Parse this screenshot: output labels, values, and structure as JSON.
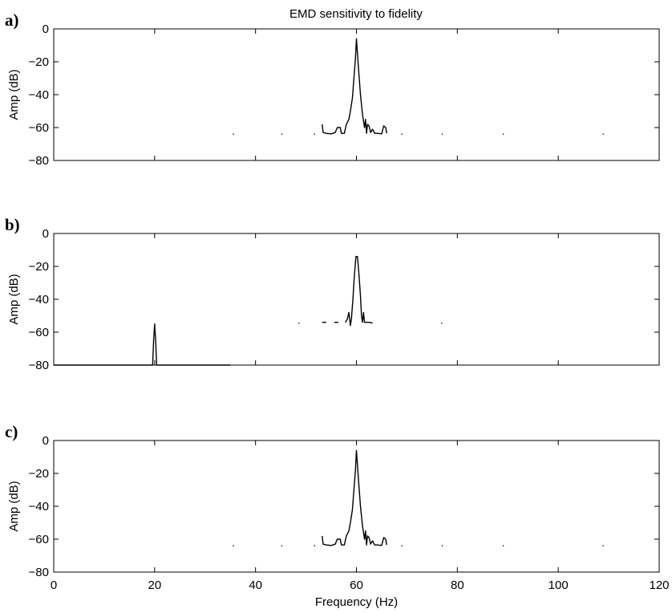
{
  "figure": {
    "title": "EMD sensitivity to fidelity"
  },
  "chart_data": [
    {
      "type": "line",
      "panel_label": "a)",
      "title": "EMD sensitivity to fidelity",
      "xlabel": "",
      "ylabel": "Amp (dB)",
      "xlim": [
        0,
        120
      ],
      "ylim": [
        -80,
        0
      ],
      "xticks": [
        0,
        20,
        40,
        60,
        80,
        100,
        120
      ],
      "yticks": [
        0,
        -20,
        -40,
        -60,
        -80
      ],
      "show_xticklabels": false,
      "grid": false,
      "series": [
        {
          "segments": [
            [
              [
                53.2,
                -58
              ],
              [
                53.4,
                -63
              ],
              [
                54,
                -63.5
              ],
              [
                55,
                -63.8
              ],
              [
                55.8,
                -63
              ],
              [
                56.2,
                -60
              ],
              [
                56.8,
                -60
              ],
              [
                57,
                -63.5
              ],
              [
                57.6,
                -63.5
              ],
              [
                58,
                -58
              ],
              [
                58.5,
                -55
              ],
              [
                58.8,
                -50
              ],
              [
                59.2,
                -42
              ],
              [
                59.5,
                -30
              ],
              [
                59.8,
                -18
              ],
              [
                60,
                -6
              ],
              [
                60.2,
                -15
              ],
              [
                60.5,
                -28
              ],
              [
                60.8,
                -40
              ],
              [
                61,
                -46
              ],
              [
                61.2,
                -52
              ],
              [
                61.4,
                -56
              ],
              [
                61.6,
                -60
              ],
              [
                61.8,
                -55
              ],
              [
                62,
                -63.5
              ],
              [
                62.2,
                -58
              ],
              [
                62.5,
                -59
              ],
              [
                62.8,
                -63
              ],
              [
                63.2,
                -61
              ],
              [
                63.6,
                -63.5
              ],
              [
                64.2,
                -63.5
              ],
              [
                65,
                -63.8
              ],
              [
                65.4,
                -59
              ],
              [
                65.8,
                -60
              ],
              [
                66,
                -63.5
              ]
            ],
            [
              [
                35.5,
                -64
              ],
              [
                35.7,
                -64
              ]
            ],
            [
              [
                45.1,
                -64
              ],
              [
                45.3,
                -64
              ]
            ],
            [
              [
                51.6,
                -64
              ],
              [
                51.8,
                -64
              ]
            ],
            [
              [
                68.9,
                -64
              ],
              [
                69.1,
                -64
              ]
            ],
            [
              [
                76.9,
                -64
              ],
              [
                77.1,
                -64
              ]
            ],
            [
              [
                89,
                -64
              ],
              [
                89.2,
                -64
              ]
            ],
            [
              [
                108.8,
                -64
              ],
              [
                109,
                -64
              ]
            ]
          ]
        }
      ]
    },
    {
      "type": "line",
      "panel_label": "b)",
      "title": "",
      "xlabel": "",
      "ylabel": "Amp (dB)",
      "xlim": [
        0,
        120
      ],
      "ylim": [
        -80,
        0
      ],
      "xticks": [
        0,
        20,
        40,
        60,
        80,
        100,
        120
      ],
      "yticks": [
        0,
        -20,
        -40,
        -60,
        -80
      ],
      "show_xticklabels": false,
      "grid": false,
      "series": [
        {
          "segments": [
            [
              [
                0,
                -80
              ],
              [
                19.6,
                -80
              ],
              [
                19.8,
                -65
              ],
              [
                20,
                -55
              ],
              [
                20.2,
                -65
              ],
              [
                20.4,
                -80
              ],
              [
                35,
                -80
              ]
            ],
            [
              [
                57.8,
                -54
              ],
              [
                58.2,
                -52
              ],
              [
                58.5,
                -48
              ],
              [
                58.8,
                -56
              ],
              [
                59,
                -52
              ],
              [
                59.3,
                -40
              ],
              [
                59.6,
                -25
              ],
              [
                59.9,
                -14
              ],
              [
                60.2,
                -14
              ],
              [
                60.5,
                -25
              ],
              [
                60.8,
                -38
              ],
              [
                61,
                -50
              ],
              [
                61.2,
                -54
              ],
              [
                61.4,
                -48
              ],
              [
                61.6,
                -54
              ],
              [
                62.5,
                -54
              ],
              [
                63.2,
                -54.5
              ]
            ],
            [
              [
                48.5,
                -54.5
              ],
              [
                48.7,
                -54.5
              ]
            ],
            [
              [
                53.2,
                -54
              ],
              [
                54,
                -54
              ]
            ],
            [
              [
                55.6,
                -54
              ],
              [
                56.4,
                -54
              ]
            ],
            [
              [
                76.8,
                -54.5
              ],
              [
                77,
                -54.5
              ]
            ]
          ]
        }
      ]
    },
    {
      "type": "line",
      "panel_label": "c)",
      "title": "",
      "xlabel": "Frequency (Hz)",
      "ylabel": "Amp (dB)",
      "xlim": [
        0,
        120
      ],
      "ylim": [
        -80,
        0
      ],
      "xticks": [
        0,
        20,
        40,
        60,
        80,
        100,
        120
      ],
      "yticks": [
        0,
        -20,
        -40,
        -60,
        -80
      ],
      "show_xticklabels": true,
      "grid": false,
      "series": [
        {
          "segments": [
            [
              [
                53.2,
                -58
              ],
              [
                53.4,
                -63
              ],
              [
                54,
                -63.5
              ],
              [
                55,
                -63.8
              ],
              [
                55.8,
                -63
              ],
              [
                56.2,
                -60
              ],
              [
                56.8,
                -60
              ],
              [
                57,
                -63.5
              ],
              [
                57.6,
                -63.5
              ],
              [
                58,
                -58
              ],
              [
                58.5,
                -55
              ],
              [
                58.8,
                -50
              ],
              [
                59.2,
                -42
              ],
              [
                59.5,
                -30
              ],
              [
                59.8,
                -18
              ],
              [
                60,
                -6
              ],
              [
                60.2,
                -15
              ],
              [
                60.5,
                -28
              ],
              [
                60.8,
                -40
              ],
              [
                61,
                -46
              ],
              [
                61.2,
                -52
              ],
              [
                61.4,
                -56
              ],
              [
                61.6,
                -60
              ],
              [
                61.8,
                -55
              ],
              [
                62,
                -63.5
              ],
              [
                62.2,
                -58
              ],
              [
                62.5,
                -59
              ],
              [
                62.8,
                -63
              ],
              [
                63.2,
                -61
              ],
              [
                63.6,
                -63.5
              ],
              [
                64.2,
                -63.5
              ],
              [
                65,
                -63.8
              ],
              [
                65.4,
                -59
              ],
              [
                65.8,
                -60
              ],
              [
                66,
                -63.5
              ]
            ],
            [
              [
                35.5,
                -64
              ],
              [
                35.7,
                -64
              ]
            ],
            [
              [
                45.1,
                -64
              ],
              [
                45.3,
                -64
              ]
            ],
            [
              [
                51.6,
                -64
              ],
              [
                51.8,
                -64
              ]
            ],
            [
              [
                68.9,
                -64
              ],
              [
                69.1,
                -64
              ]
            ],
            [
              [
                76.9,
                -64
              ],
              [
                77.1,
                -64
              ]
            ],
            [
              [
                89,
                -64
              ],
              [
                89.2,
                -64
              ]
            ],
            [
              [
                108.8,
                -64
              ],
              [
                109,
                -64
              ]
            ]
          ]
        }
      ]
    }
  ]
}
